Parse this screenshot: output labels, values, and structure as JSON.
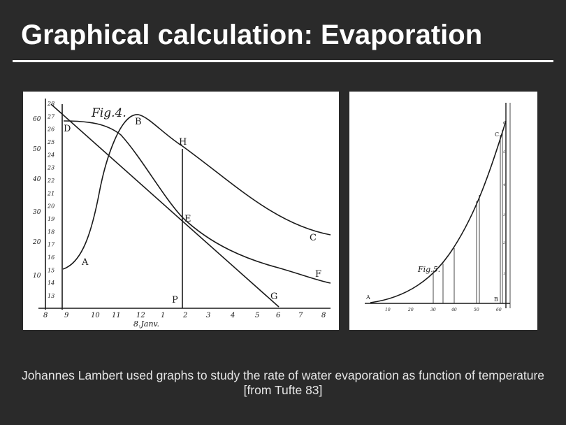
{
  "slide": {
    "title": "Graphical calculation: Evaporation",
    "caption": "Johannes Lambert used graphs to study the rate of water evaporation as function of temperature [from Tufte 83]"
  },
  "figure4": {
    "fig_label": "Fig.4.",
    "point_labels": {
      "A": "A",
      "B": "B",
      "C": "C",
      "D": "D",
      "E": "E",
      "F": "F",
      "G": "G",
      "H": "H",
      "P": "P"
    },
    "date_label": "8.Janv.",
    "x_ticks": [
      "8",
      "9",
      "10",
      "11",
      "12",
      "1",
      "2",
      "3",
      "4",
      "5",
      "6",
      "7",
      "8"
    ],
    "left_ticks": [
      "60",
      "50",
      "40",
      "30",
      "20",
      "10"
    ],
    "inner_ticks": [
      "28",
      "27",
      "26",
      "25",
      "24",
      "23",
      "22",
      "21",
      "20",
      "19",
      "18",
      "17",
      "16",
      "15",
      "14",
      "13"
    ]
  },
  "figure5": {
    "fig_label": "Fig.5.",
    "point_labels": {
      "A": "A",
      "B": "B",
      "C": "C"
    },
    "x_ticks": [
      "10",
      "20",
      "30",
      "40",
      "50",
      "60"
    ],
    "right_ticks": [
      "6",
      "5",
      "4",
      "3",
      "2",
      "1"
    ]
  }
}
